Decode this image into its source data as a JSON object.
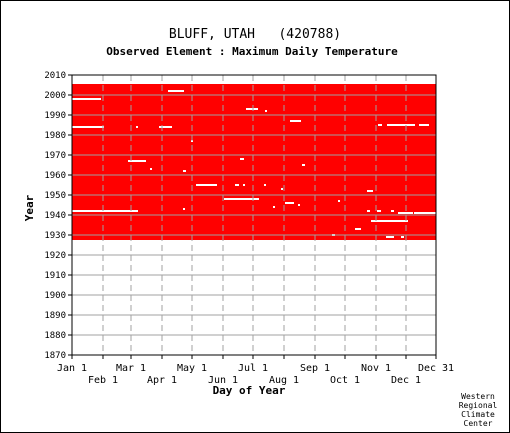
{
  "chart_data": {
    "type": "heatmap",
    "title": "BLUFF, UTAH   (420788)",
    "subtitle": "Observed Element : Maximum Daily Temperature",
    "xlabel": "Day of Year",
    "ylabel": "Year",
    "credit": [
      "Western",
      "Regional",
      "Climate",
      "Center"
    ],
    "xlim": [
      1,
      365
    ],
    "ylim": [
      1870,
      2010
    ],
    "y_ticks": [
      "2010",
      "2000",
      "1990",
      "1980",
      "1970",
      "1960",
      "1950",
      "1940",
      "1930",
      "1920",
      "1910",
      "1900",
      "1890",
      "1880",
      "1870"
    ],
    "x_ticks_upper": [
      {
        "label": "Jan 1",
        "day": 1
      },
      {
        "label": "Mar 1",
        "day": 60
      },
      {
        "label": "May 1",
        "day": 121
      },
      {
        "label": "Jul 1",
        "day": 182
      },
      {
        "label": "Sep 1",
        "day": 244
      },
      {
        "label": "Nov 1",
        "day": 305
      },
      {
        "label": "Dec 31",
        "day": 365
      }
    ],
    "x_ticks_lower": [
      {
        "label": "Feb 1",
        "day": 32
      },
      {
        "label": "Apr 1",
        "day": 91
      },
      {
        "label": "Jun 1",
        "day": 152
      },
      {
        "label": "Aug 1",
        "day": 213
      },
      {
        "label": "Oct 1",
        "day": 274
      },
      {
        "label": "Dec 1",
        "day": 335
      }
    ],
    "grid": true,
    "data_color": "#ff0000",
    "missing_color": "#ffffff",
    "data_block": {
      "start_year": 1927.5,
      "end_year": 2005.5,
      "first_day": 1,
      "last_day": 365
    },
    "missing_segments": [
      {
        "year": 2002,
        "day_start": 97,
        "day_end": 113
      },
      {
        "year": 1998,
        "day_start": 1,
        "day_end": 30
      },
      {
        "year": 1993,
        "day_start": 175,
        "day_end": 187
      },
      {
        "year": 1992,
        "day_start": 194,
        "day_end": 196
      },
      {
        "year": 1987,
        "day_start": 219,
        "day_end": 230
      },
      {
        "year": 1984,
        "day_start": 1,
        "day_end": 33
      },
      {
        "year": 1984,
        "day_start": 65,
        "day_end": 67
      },
      {
        "year": 1984,
        "day_start": 88,
        "day_end": 101
      },
      {
        "year": 1985,
        "day_start": 307,
        "day_end": 311
      },
      {
        "year": 1985,
        "day_start": 316,
        "day_end": 344
      },
      {
        "year": 1985,
        "day_start": 348,
        "day_end": 358
      },
      {
        "year": 1977,
        "day_start": 120,
        "day_end": 122
      },
      {
        "year": 1967,
        "day_start": 57,
        "day_end": 75
      },
      {
        "year": 1968,
        "day_start": 169,
        "day_end": 173
      },
      {
        "year": 1965,
        "day_start": 231,
        "day_end": 234
      },
      {
        "year": 1963,
        "day_start": 79,
        "day_end": 81
      },
      {
        "year": 1962,
        "day_start": 112,
        "day_end": 115
      },
      {
        "year": 1955,
        "day_start": 125,
        "day_end": 146
      },
      {
        "year": 1955,
        "day_start": 164,
        "day_end": 168
      },
      {
        "year": 1955,
        "day_start": 172,
        "day_end": 174
      },
      {
        "year": 1955,
        "day_start": 193,
        "day_end": 195
      },
      {
        "year": 1953,
        "day_start": 210,
        "day_end": 212
      },
      {
        "year": 1952,
        "day_start": 296,
        "day_end": 302
      },
      {
        "year": 1948,
        "day_start": 153,
        "day_end": 188
      },
      {
        "year": 1947,
        "day_start": 267,
        "day_end": 269
      },
      {
        "year": 1946,
        "day_start": 214,
        "day_end": 223
      },
      {
        "year": 1945,
        "day_start": 227,
        "day_end": 229
      },
      {
        "year": 1944,
        "day_start": 202,
        "day_end": 204
      },
      {
        "year": 1943,
        "day_start": 112,
        "day_end": 114
      },
      {
        "year": 1942,
        "day_start": 1,
        "day_end": 67
      },
      {
        "year": 1942,
        "day_start": 296,
        "day_end": 299
      },
      {
        "year": 1942,
        "day_start": 306,
        "day_end": 310
      },
      {
        "year": 1942,
        "day_start": 320,
        "day_end": 323
      },
      {
        "year": 1941,
        "day_start": 327,
        "day_end": 342
      },
      {
        "year": 1941,
        "day_start": 343,
        "day_end": 365
      },
      {
        "year": 1937,
        "day_start": 300,
        "day_end": 337
      },
      {
        "year": 1933,
        "day_start": 284,
        "day_end": 290
      },
      {
        "year": 1930,
        "day_start": 261,
        "day_end": 264
      },
      {
        "year": 1929,
        "day_start": 315,
        "day_end": 323
      },
      {
        "year": 1929,
        "day_start": 330,
        "day_end": 333
      }
    ]
  }
}
